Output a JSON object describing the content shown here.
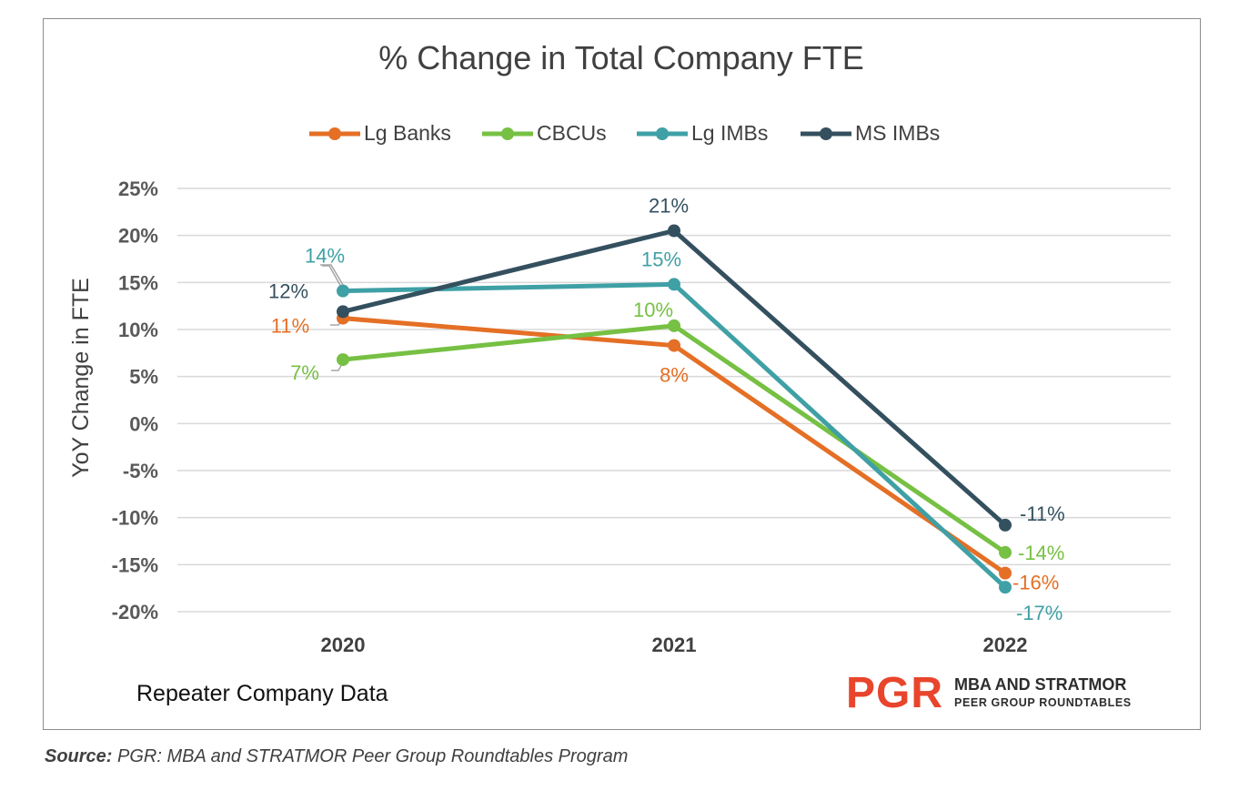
{
  "chart_data": {
    "type": "line",
    "title": "% Change in Total Company FTE",
    "ylabel": "YoY Change in FTE",
    "xlabel": "",
    "categories": [
      "2020",
      "2021",
      "2022"
    ],
    "ylim": [
      -20,
      25
    ],
    "yticks": [
      25,
      20,
      15,
      10,
      5,
      0,
      -5,
      -10,
      -15,
      -20
    ],
    "ytick_labels": [
      "25%",
      "20%",
      "15%",
      "10%",
      "5%",
      "0%",
      "-5%",
      "-10%",
      "-15%",
      "-20%"
    ],
    "grid": true,
    "legend_position": "top",
    "series": [
      {
        "name": "Lg Banks",
        "color": "#e46f25",
        "values": [
          11.2,
          8.3,
          -15.9
        ],
        "labels": [
          "11%",
          "8%",
          "-16%"
        ]
      },
      {
        "name": "CBCUs",
        "color": "#76c043",
        "values": [
          6.8,
          10.4,
          -13.7
        ],
        "labels": [
          "7%",
          "10%",
          "-14%"
        ]
      },
      {
        "name": "Lg IMBs",
        "color": "#3fa0a5",
        "values": [
          14.1,
          14.8,
          -17.4
        ],
        "labels": [
          "14%",
          "15%",
          "-17%"
        ]
      },
      {
        "name": "MS IMBs",
        "color": "#34505f",
        "values": [
          11.9,
          20.5,
          -10.8
        ],
        "labels": [
          "12%",
          "21%",
          "-11%"
        ]
      }
    ],
    "annotation": "Repeater Company Data"
  },
  "logo": {
    "mark": "PGR",
    "line1": "MBA AND STRATMOR",
    "line2": "PEER GROUP ROUNDTABLES"
  },
  "source": {
    "label": "Source:",
    "text": "PGR: MBA and STRATMOR Peer Group Roundtables Program"
  }
}
